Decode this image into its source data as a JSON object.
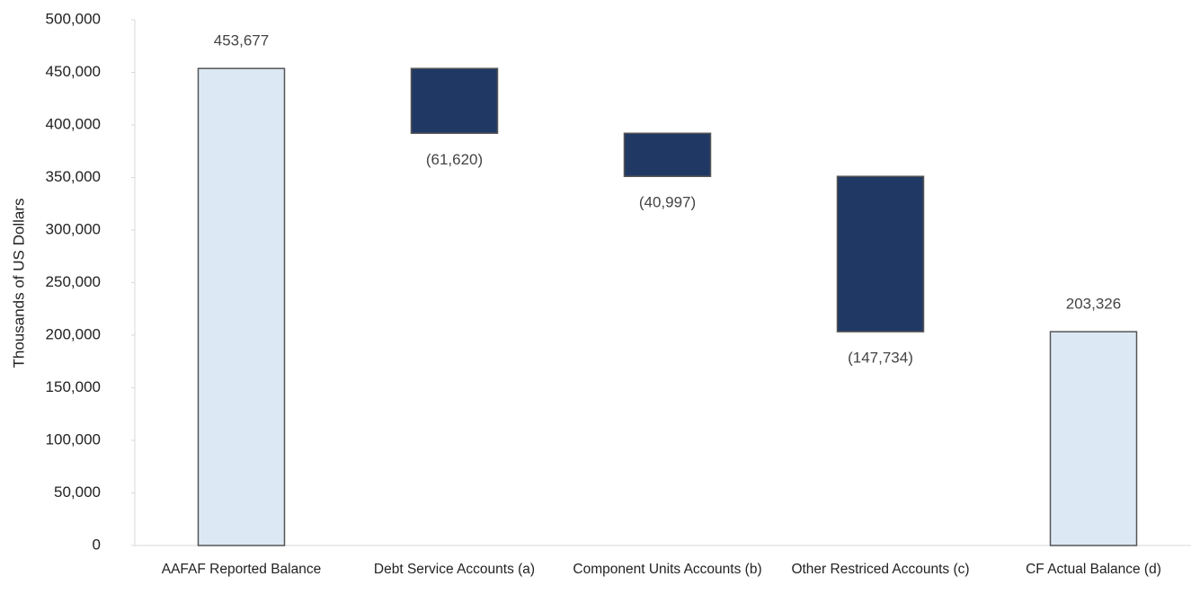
{
  "chart_data": {
    "type": "waterfall",
    "y_label": "Thousands of US Dollars",
    "categories": [
      "AAFAF Reported Balance",
      "Debt Service Accounts (a)",
      "Component Units Accounts (b)",
      "Other Restriced Accounts (c)",
      "CF Actual Balance (d)"
    ],
    "values": [
      453677,
      -61620,
      -40997,
      -147734,
      203326
    ],
    "value_labels": [
      "453,677",
      "(61,620)",
      "(40,997)",
      "(147,734)",
      "203,326"
    ],
    "totals": [
      true,
      false,
      false,
      false,
      true
    ],
    "total_color": "#dce9f5",
    "delta_color": "#203864",
    "ylim": [
      0,
      500000
    ],
    "yticks": [
      0,
      {
        "value": 50000,
        "label": "50,000"
      },
      {
        "value": 100000,
        "label": "100,000"
      },
      {
        "value": 150000,
        "label": "150,000"
      },
      {
        "value": 200000,
        "label": "200,000"
      },
      {
        "value": 250000,
        "label": "250,000"
      },
      {
        "value": 300000,
        "label": "300,000"
      },
      {
        "value": 350000,
        "label": "350,000"
      },
      {
        "value": 400000,
        "label": "400,000"
      },
      {
        "value": 450000,
        "label": "450,000"
      },
      {
        "value": 500000,
        "label": "500,000"
      }
    ],
    "grid": false
  }
}
